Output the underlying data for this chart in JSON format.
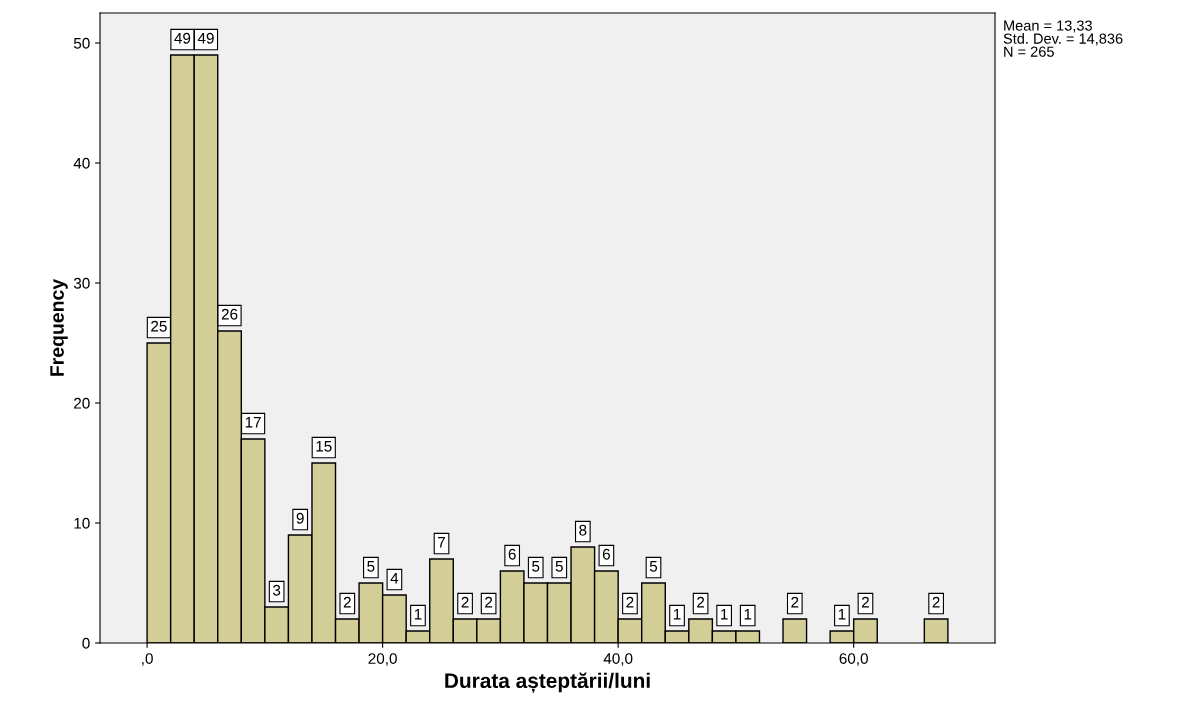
{
  "chart_data": {
    "type": "histogram",
    "xlabel": "Durata așteptării/luni",
    "ylabel": "Frequency",
    "bins": [
      0,
      2,
      4,
      6,
      8,
      10,
      12,
      14,
      16,
      18,
      20,
      22,
      24,
      26,
      28,
      30,
      32,
      34,
      36,
      38,
      40,
      42,
      44,
      46,
      48,
      50,
      52,
      54,
      56,
      58,
      60,
      62,
      64,
      66,
      68
    ],
    "values": [
      25,
      49,
      49,
      26,
      17,
      3,
      9,
      15,
      2,
      5,
      4,
      1,
      7,
      2,
      2,
      6,
      5,
      5,
      8,
      6,
      2,
      5,
      1,
      2,
      1,
      1,
      0,
      2,
      0,
      1,
      2,
      0,
      0,
      2
    ],
    "value_labels": [
      "25",
      "49",
      "49",
      "26",
      "17",
      "3",
      "9",
      "15",
      "2",
      "5",
      "4",
      "1",
      "7",
      "2",
      "2",
      "6",
      "5",
      "5",
      "8",
      "6",
      "2",
      "5",
      "1",
      "2",
      "1",
      "1",
      null,
      "2",
      null,
      "1",
      "2",
      null,
      null,
      "2"
    ],
    "color": "#d3ce97",
    "xlim": [
      -4,
      72
    ],
    "ylim": [
      0,
      52.5
    ],
    "xticks": [
      {
        "value": 0,
        "label": ",0"
      },
      {
        "value": 20,
        "label": "20,0"
      },
      {
        "value": 40,
        "label": "40,0"
      },
      {
        "value": 60,
        "label": "60,0"
      }
    ],
    "yticks": [
      0,
      10,
      20,
      30,
      40,
      50
    ],
    "grid": false,
    "annotations": [
      "Mean = 13,33\nStd. Dev. = 14,836\nN = 265"
    ]
  }
}
